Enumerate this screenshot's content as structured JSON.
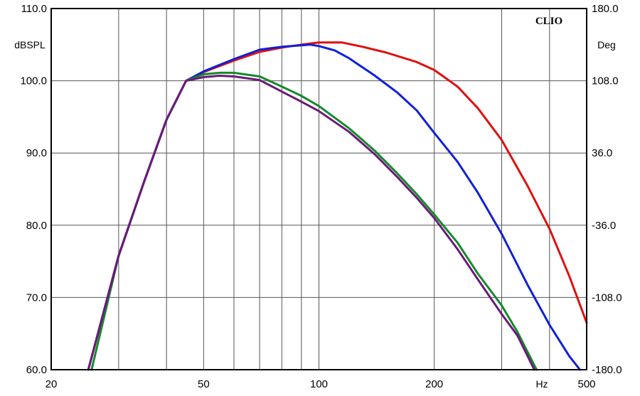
{
  "chart_data": {
    "type": "line",
    "brand": "CLIO",
    "x_scale": "log",
    "xlim": [
      20,
      500
    ],
    "x_ticks": [
      20,
      50,
      100,
      200,
      500
    ],
    "x_tick_labels": [
      "20",
      "50",
      "100",
      "200",
      "500"
    ],
    "x_unit_label": "Hz",
    "y_left": {
      "label": "dBSPL",
      "lim": [
        60,
        110
      ],
      "ticks": [
        60,
        70,
        80,
        90,
        100,
        110
      ],
      "tick_labels": [
        "60.0",
        "70.0",
        "80.0",
        "90.0",
        "100.0",
        "110.0"
      ]
    },
    "y_right": {
      "label": "Deg",
      "lim": [
        -180,
        180
      ],
      "ticks": [
        -180,
        -108,
        -36,
        36,
        108,
        180
      ],
      "tick_labels": [
        "-180.0",
        "-108.0",
        "-36.0",
        "36.0",
        "108.0",
        "180.0"
      ]
    },
    "grid": true,
    "series": [
      {
        "color": "#e01010",
        "x": [
          25,
          30,
          35,
          40,
          45,
          50,
          60,
          70,
          80,
          90,
          100,
          115,
          130,
          150,
          180,
          200,
          230,
          260,
          300,
          350,
          400,
          450,
          500
        ],
        "y": [
          60,
          75.8,
          86.1,
          94.6,
          100,
          101.2,
          102.8,
          104,
          104.6,
          105,
          105.3,
          105.3,
          104.7,
          103.9,
          102.6,
          101.5,
          99.2,
          96.2,
          91.8,
          85.5,
          79.5,
          73,
          66.5
        ]
      },
      {
        "color": "#1020d8",
        "x": [
          25,
          30,
          35,
          40,
          45,
          50,
          60,
          70,
          80,
          90,
          95,
          100,
          110,
          120,
          140,
          160,
          180,
          200,
          230,
          260,
          300,
          350,
          400,
          450,
          480
        ],
        "y": [
          60,
          75.8,
          86.1,
          94.6,
          100,
          101.3,
          103,
          104.3,
          104.7,
          104.9,
          105,
          104.8,
          104.2,
          103.1,
          100.7,
          98.4,
          95.9,
          92.8,
          88.8,
          84.5,
          78.8,
          71.8,
          66.2,
          61.9,
          60
        ]
      },
      {
        "color": "#148a2a",
        "x": [
          25.5,
          30,
          35,
          40,
          45,
          50,
          55,
          60,
          70,
          80,
          90,
          100,
          120,
          140,
          160,
          180,
          200,
          230,
          260,
          300,
          330,
          370
        ],
        "y": [
          60,
          75.8,
          86.1,
          94.6,
          100,
          100.9,
          101.1,
          101.1,
          100.6,
          99.2,
          97.9,
          96.5,
          93.4,
          90.3,
          87.2,
          84.3,
          81.5,
          77.6,
          73.3,
          68.9,
          65.2,
          60
        ]
      },
      {
        "color": "#6a1a7a",
        "x": [
          25,
          30,
          35,
          40,
          45,
          50,
          55,
          60,
          70,
          80,
          90,
          100,
          120,
          140,
          160,
          180,
          200,
          230,
          260,
          300,
          330,
          365
        ],
        "y": [
          60,
          75.8,
          86.1,
          94.6,
          100,
          100.5,
          100.7,
          100.6,
          100.1,
          98.5,
          97.1,
          95.8,
          92.9,
          89.8,
          86.7,
          83.8,
          81,
          76.7,
          72.5,
          67.7,
          64.7,
          60
        ]
      }
    ]
  }
}
